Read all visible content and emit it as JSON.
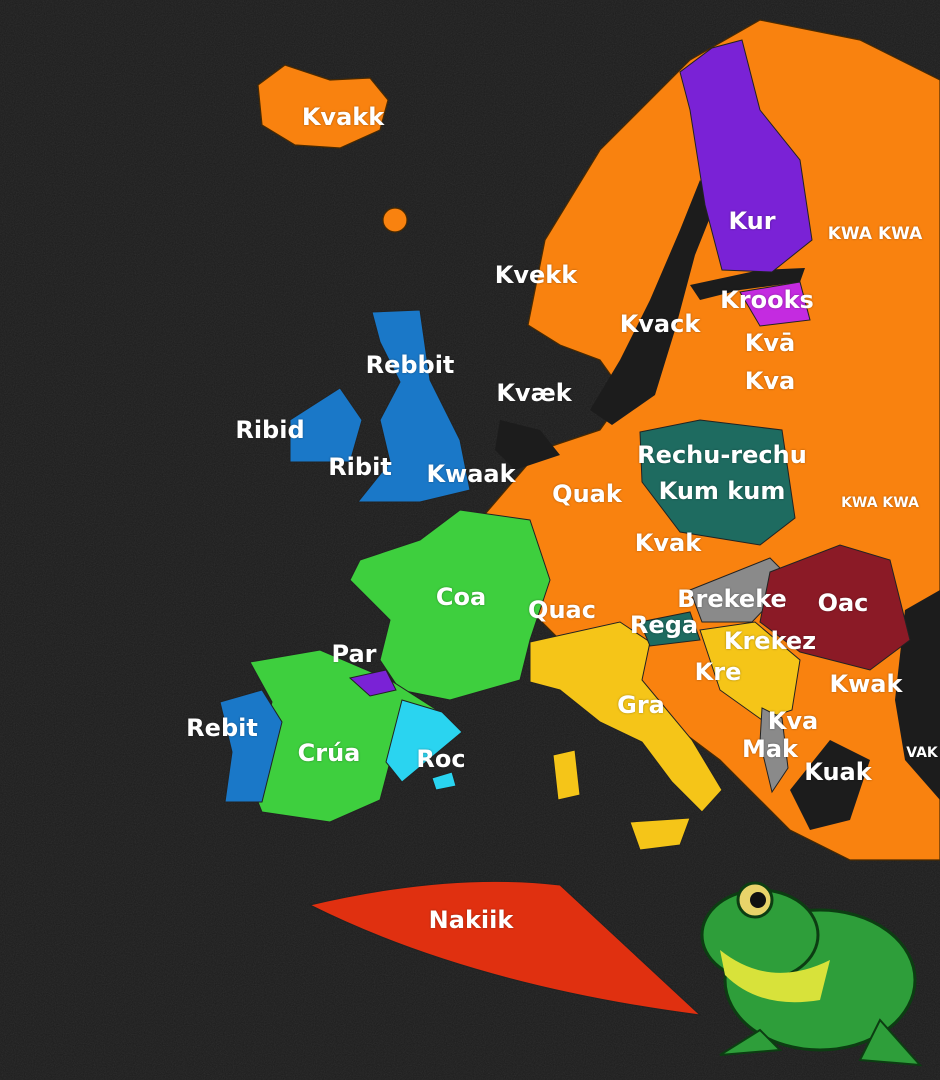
{
  "colors": {
    "background": "#1c1c1c",
    "kva_group": "#f9820f",
    "finnish": "#7a22d6",
    "estonian": "#c42be0",
    "polish": "#1e6b60",
    "slovene": "#1e6b60",
    "hungarian": "#8a8a8a",
    "romanian": "#8b1a26",
    "south_slavic_italian": "#f5c518",
    "english_irish_portuguese": "#1a78c8",
    "french_spanish": "#3ecf3e",
    "catalan": "#2ad4f0",
    "basque": "#7a22d6",
    "albanian": "#8a8a8a",
    "arabic_north_africa": "#e03010",
    "frog": "#2e9e3a"
  },
  "labels": {
    "iceland": "Kvakk",
    "norway": "Kvekk",
    "sweden": "Kvack",
    "finland": "Kur",
    "russia": "KWA KWA",
    "estonia": "Krooks",
    "latvia": "Kvā",
    "lithuania": "Kva",
    "denmark": "Kvæk",
    "england": "Rebbit",
    "ireland": "Ribid",
    "wales": "Ribit",
    "netherlands": "Kwaak",
    "germany": "Quak",
    "poland_1": "Rechu-rechu",
    "poland_2": "Kum kum",
    "ukraine": "KWA KWA",
    "czechia": "Kvak",
    "france": "Coa",
    "switzerland": "Quac",
    "hungary": "Brekeke",
    "romania": "Oac",
    "slovenia": "Rega",
    "serbia": "Krekez",
    "croatia": "Kre",
    "bulgaria": "Kwak",
    "italy": "Gra",
    "macedonia": "Kva",
    "albania": "Mak",
    "greece": "Kuak",
    "turkey": "VAK",
    "basque": "Par",
    "portugal": "Rebit",
    "spain": "Crúa",
    "catalonia": "Roc",
    "north_africa": "Nakiik"
  },
  "icons": {
    "frog": "frog-illustration"
  }
}
